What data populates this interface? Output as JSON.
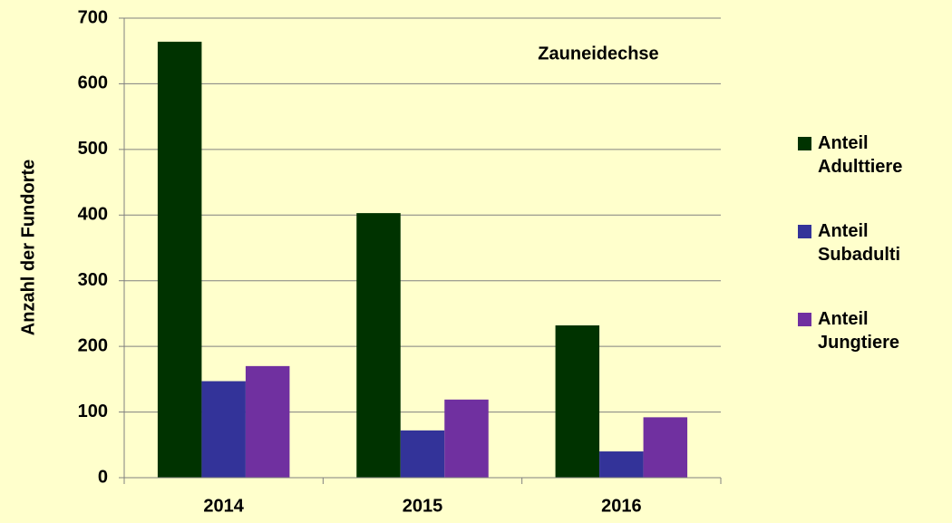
{
  "chart_data": {
    "type": "bar",
    "annotation": "Zauneidechse",
    "ylabel": "Anzahl der Fundorte",
    "categories": [
      "2014",
      "2015",
      "2016"
    ],
    "series": [
      {
        "name": "Anteil Adulttiere",
        "color": "#003300",
        "values": [
          664,
          403,
          232
        ]
      },
      {
        "name": "Anteil Subadulti",
        "color": "#333399",
        "values": [
          147,
          72,
          40
        ]
      },
      {
        "name": "Anteil Jungtiere",
        "color": "#7030a0",
        "values": [
          170,
          119,
          92
        ]
      }
    ],
    "ylim": [
      0,
      700
    ],
    "yticks": [
      0,
      100,
      200,
      300,
      400,
      500,
      600,
      700
    ],
    "grid": true,
    "legend": "right"
  }
}
